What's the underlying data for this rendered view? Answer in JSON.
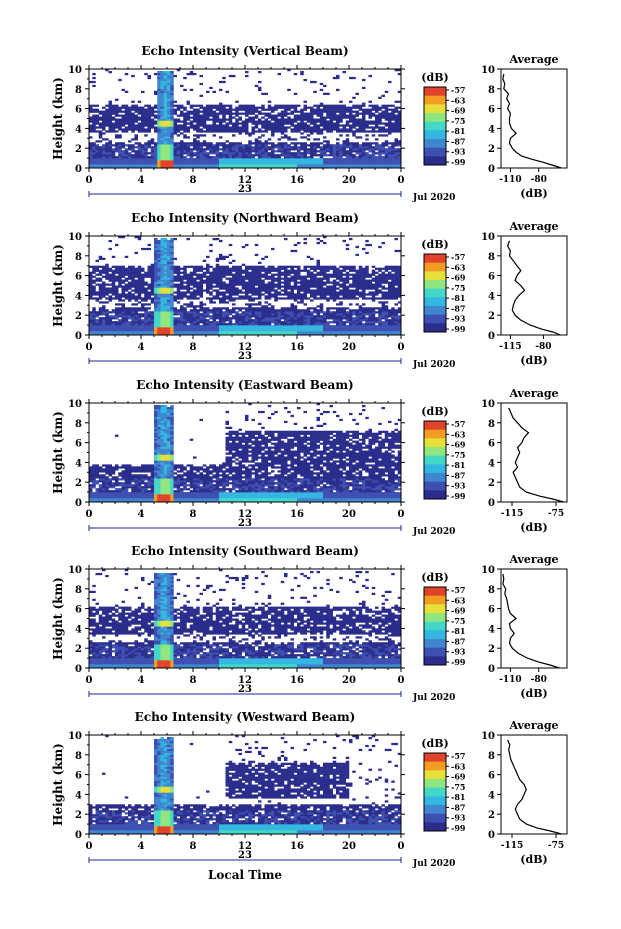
{
  "figure": {
    "colorbar_unit": "(dB)",
    "colorbar_ticks": [
      "-57",
      "-63",
      "-69",
      "-75",
      "-81",
      "-87",
      "-93",
      "-99"
    ],
    "colorbar_colors": [
      "#2b2d8c",
      "#3d4fb0",
      "#3f86cf",
      "#33b6e0",
      "#43d7c8",
      "#8fe67e",
      "#e8e03a",
      "#f39c22",
      "#e0432a"
    ],
    "x_tick_labels": [
      "0",
      "4",
      "8",
      "12",
      "16",
      "20",
      "0"
    ],
    "date_day": "23",
    "date_month_year": "Jul 2020",
    "xlabel": "Local Time",
    "ylabel": "Height (km)",
    "y_tick_labels": [
      "0",
      "2",
      "4",
      "6",
      "8",
      "10"
    ],
    "avg_title": "Average",
    "avg_xlabel": "(dB)"
  },
  "chart_data": [
    {
      "type": "heatmap",
      "title": "Echo Intensity (Vertical Beam)",
      "ylabel": "Height (km)",
      "xlabel": "Local Time",
      "xlim": [
        0,
        24
      ],
      "ylim": [
        0,
        10
      ],
      "colorbar": {
        "label": "(dB)",
        "ticks": [
          -57,
          -63,
          -69,
          -75,
          -81,
          -87,
          -93,
          -99
        ]
      },
      "layers": {
        "cloud_top_km": 6.5,
        "mid_gap_km": [
          2.6,
          3.6
        ],
        "storm_hours": [
          5.2,
          6.6
        ]
      },
      "average_profile": {
        "title": "Average",
        "xlabel": "(dB)",
        "xlim": [
          -120,
          -50
        ],
        "xtick_labels": [
          "-110",
          "-80"
        ],
        "xticks": [
          -110,
          -80
        ],
        "height_km": [
          0,
          0.3,
          0.6,
          0.9,
          1.2,
          1.6,
          2.0,
          2.5,
          3.0,
          3.5,
          4.0,
          4.5,
          5.0,
          5.5,
          6.0,
          6.5,
          7.0,
          7.5,
          8.0,
          8.5,
          9.0,
          9.5
        ],
        "db": [
          -56,
          -66,
          -76,
          -88,
          -98,
          -104,
          -108,
          -111,
          -110,
          -104,
          -109,
          -111,
          -111,
          -110,
          -113,
          -111,
          -114,
          -112,
          -117,
          -116,
          -118,
          -117
        ]
      }
    },
    {
      "type": "heatmap",
      "title": "Echo Intensity (Northward Beam)",
      "ylabel": "Height (km)",
      "xlabel": "Local Time",
      "xlim": [
        0,
        24
      ],
      "ylim": [
        0,
        10
      ],
      "colorbar": {
        "label": "(dB)",
        "ticks": [
          -57,
          -63,
          -69,
          -75,
          -81,
          -87,
          -93,
          -99
        ]
      },
      "layers": {
        "cloud_top_km": 7.0,
        "mid_gap_km": [
          2.8,
          3.6
        ],
        "storm_hours": [
          5.0,
          6.6
        ]
      },
      "average_profile": {
        "title": "Average",
        "xlabel": "(dB)",
        "xlim": [
          -125,
          -55
        ],
        "xtick_labels": [
          "-115",
          "-80"
        ],
        "xticks": [
          -115,
          -80
        ],
        "height_km": [
          0,
          0.3,
          0.6,
          1.0,
          1.5,
          2.0,
          2.5,
          3.0,
          3.5,
          4.0,
          4.5,
          5.0,
          5.5,
          6.0,
          6.5,
          7.0,
          7.5,
          8.0,
          8.5,
          9.0,
          9.5
        ],
        "db": [
          -62,
          -70,
          -82,
          -94,
          -104,
          -110,
          -113,
          -112,
          -110,
          -106,
          -100,
          -104,
          -110,
          -108,
          -104,
          -108,
          -112,
          -116,
          -115,
          -118,
          -116
        ]
      }
    },
    {
      "type": "heatmap",
      "title": "Echo Intensity (Eastward Beam)",
      "ylabel": "Height (km)",
      "xlabel": "Local Time",
      "xlim": [
        0,
        24
      ],
      "ylim": [
        0,
        10
      ],
      "colorbar": {
        "label": "(dB)",
        "ticks": [
          -57,
          -63,
          -69,
          -75,
          -81,
          -87,
          -93,
          -99
        ]
      },
      "layers": {
        "cloud_top_km": 3.8,
        "mid_gap_km": [
          4.0,
          4.0
        ],
        "upper_band_km": [
          3.8,
          7.2
        ],
        "upper_band_hours": [
          10.5,
          24
        ],
        "storm_hours": [
          5.0,
          6.6
        ]
      },
      "average_profile": {
        "title": "Average",
        "xlabel": "(dB)",
        "xlim": [
          -125,
          -65
        ],
        "xtick_labels": [
          "-115",
          "-75"
        ],
        "xticks": [
          -115,
          -75
        ],
        "height_km": [
          0,
          0.3,
          0.6,
          1.0,
          1.5,
          2.0,
          2.5,
          3.0,
          3.5,
          4.0,
          4.5,
          5.0,
          5.5,
          6.0,
          6.5,
          7.0,
          7.5,
          8.0,
          8.5,
          9.0,
          9.5
        ],
        "db": [
          -68,
          -78,
          -90,
          -102,
          -108,
          -110,
          -112,
          -114,
          -110,
          -112,
          -110,
          -108,
          -110,
          -106,
          -104,
          -100,
          -106,
          -110,
          -114,
          -116,
          -118
        ]
      }
    },
    {
      "type": "heatmap",
      "title": "Echo Intensity (Southward Beam)",
      "ylabel": "Height (km)",
      "xlabel": "Local Time",
      "xlim": [
        0,
        24
      ],
      "ylim": [
        0,
        10
      ],
      "colorbar": {
        "label": "(dB)",
        "ticks": [
          -57,
          -63,
          -69,
          -75,
          -81,
          -87,
          -93,
          -99
        ]
      },
      "layers": {
        "cloud_top_km": 6.3,
        "mid_gap_km": [
          2.6,
          3.4
        ],
        "storm_hours": [
          5.0,
          6.6
        ]
      },
      "average_profile": {
        "title": "Average",
        "xlabel": "(dB)",
        "xlim": [
          -120,
          -50
        ],
        "xtick_labels": [
          "-110",
          "-80"
        ],
        "xticks": [
          -110,
          -80
        ],
        "height_km": [
          0,
          0.3,
          0.6,
          1.0,
          1.5,
          2.0,
          2.5,
          3.0,
          3.5,
          4.0,
          4.5,
          5.0,
          5.5,
          6.0,
          6.5,
          7.0,
          7.5,
          8.0,
          8.5,
          9.0,
          9.5
        ],
        "db": [
          -58,
          -68,
          -80,
          -92,
          -102,
          -108,
          -111,
          -110,
          -106,
          -110,
          -111,
          -104,
          -110,
          -112,
          -113,
          -114,
          -116,
          -115,
          -118,
          -117,
          -118
        ]
      }
    },
    {
      "type": "heatmap",
      "title": "Echo Intensity (Westward Beam)",
      "ylabel": "Height (km)",
      "xlabel": "Local Time",
      "xlim": [
        0,
        24
      ],
      "ylim": [
        0,
        10
      ],
      "colorbar": {
        "label": "(dB)",
        "ticks": [
          -57,
          -63,
          -69,
          -75,
          -81,
          -87,
          -93,
          -99
        ]
      },
      "layers": {
        "cloud_top_km": 3.0,
        "mid_gap_km": [
          3.0,
          3.0
        ],
        "upper_band_km": [
          3.6,
          7.2
        ],
        "upper_band_hours": [
          10.5,
          20
        ],
        "storm_hours": [
          5.0,
          6.6
        ]
      },
      "average_profile": {
        "title": "Average",
        "xlabel": "(dB)",
        "xlim": [
          -125,
          -65
        ],
        "xtick_labels": [
          "-115",
          "-75"
        ],
        "xticks": [
          -115,
          -75
        ],
        "height_km": [
          0,
          0.3,
          0.6,
          1.0,
          1.5,
          2.0,
          2.5,
          3.0,
          3.5,
          4.0,
          4.5,
          5.0,
          5.5,
          6.0,
          6.5,
          7.0,
          7.5,
          8.0,
          8.5,
          9.0,
          9.5
        ],
        "db": [
          -70,
          -80,
          -92,
          -102,
          -108,
          -110,
          -112,
          -110,
          -106,
          -104,
          -102,
          -104,
          -108,
          -110,
          -112,
          -114,
          -116,
          -117,
          -118,
          -117,
          -119
        ]
      }
    }
  ]
}
